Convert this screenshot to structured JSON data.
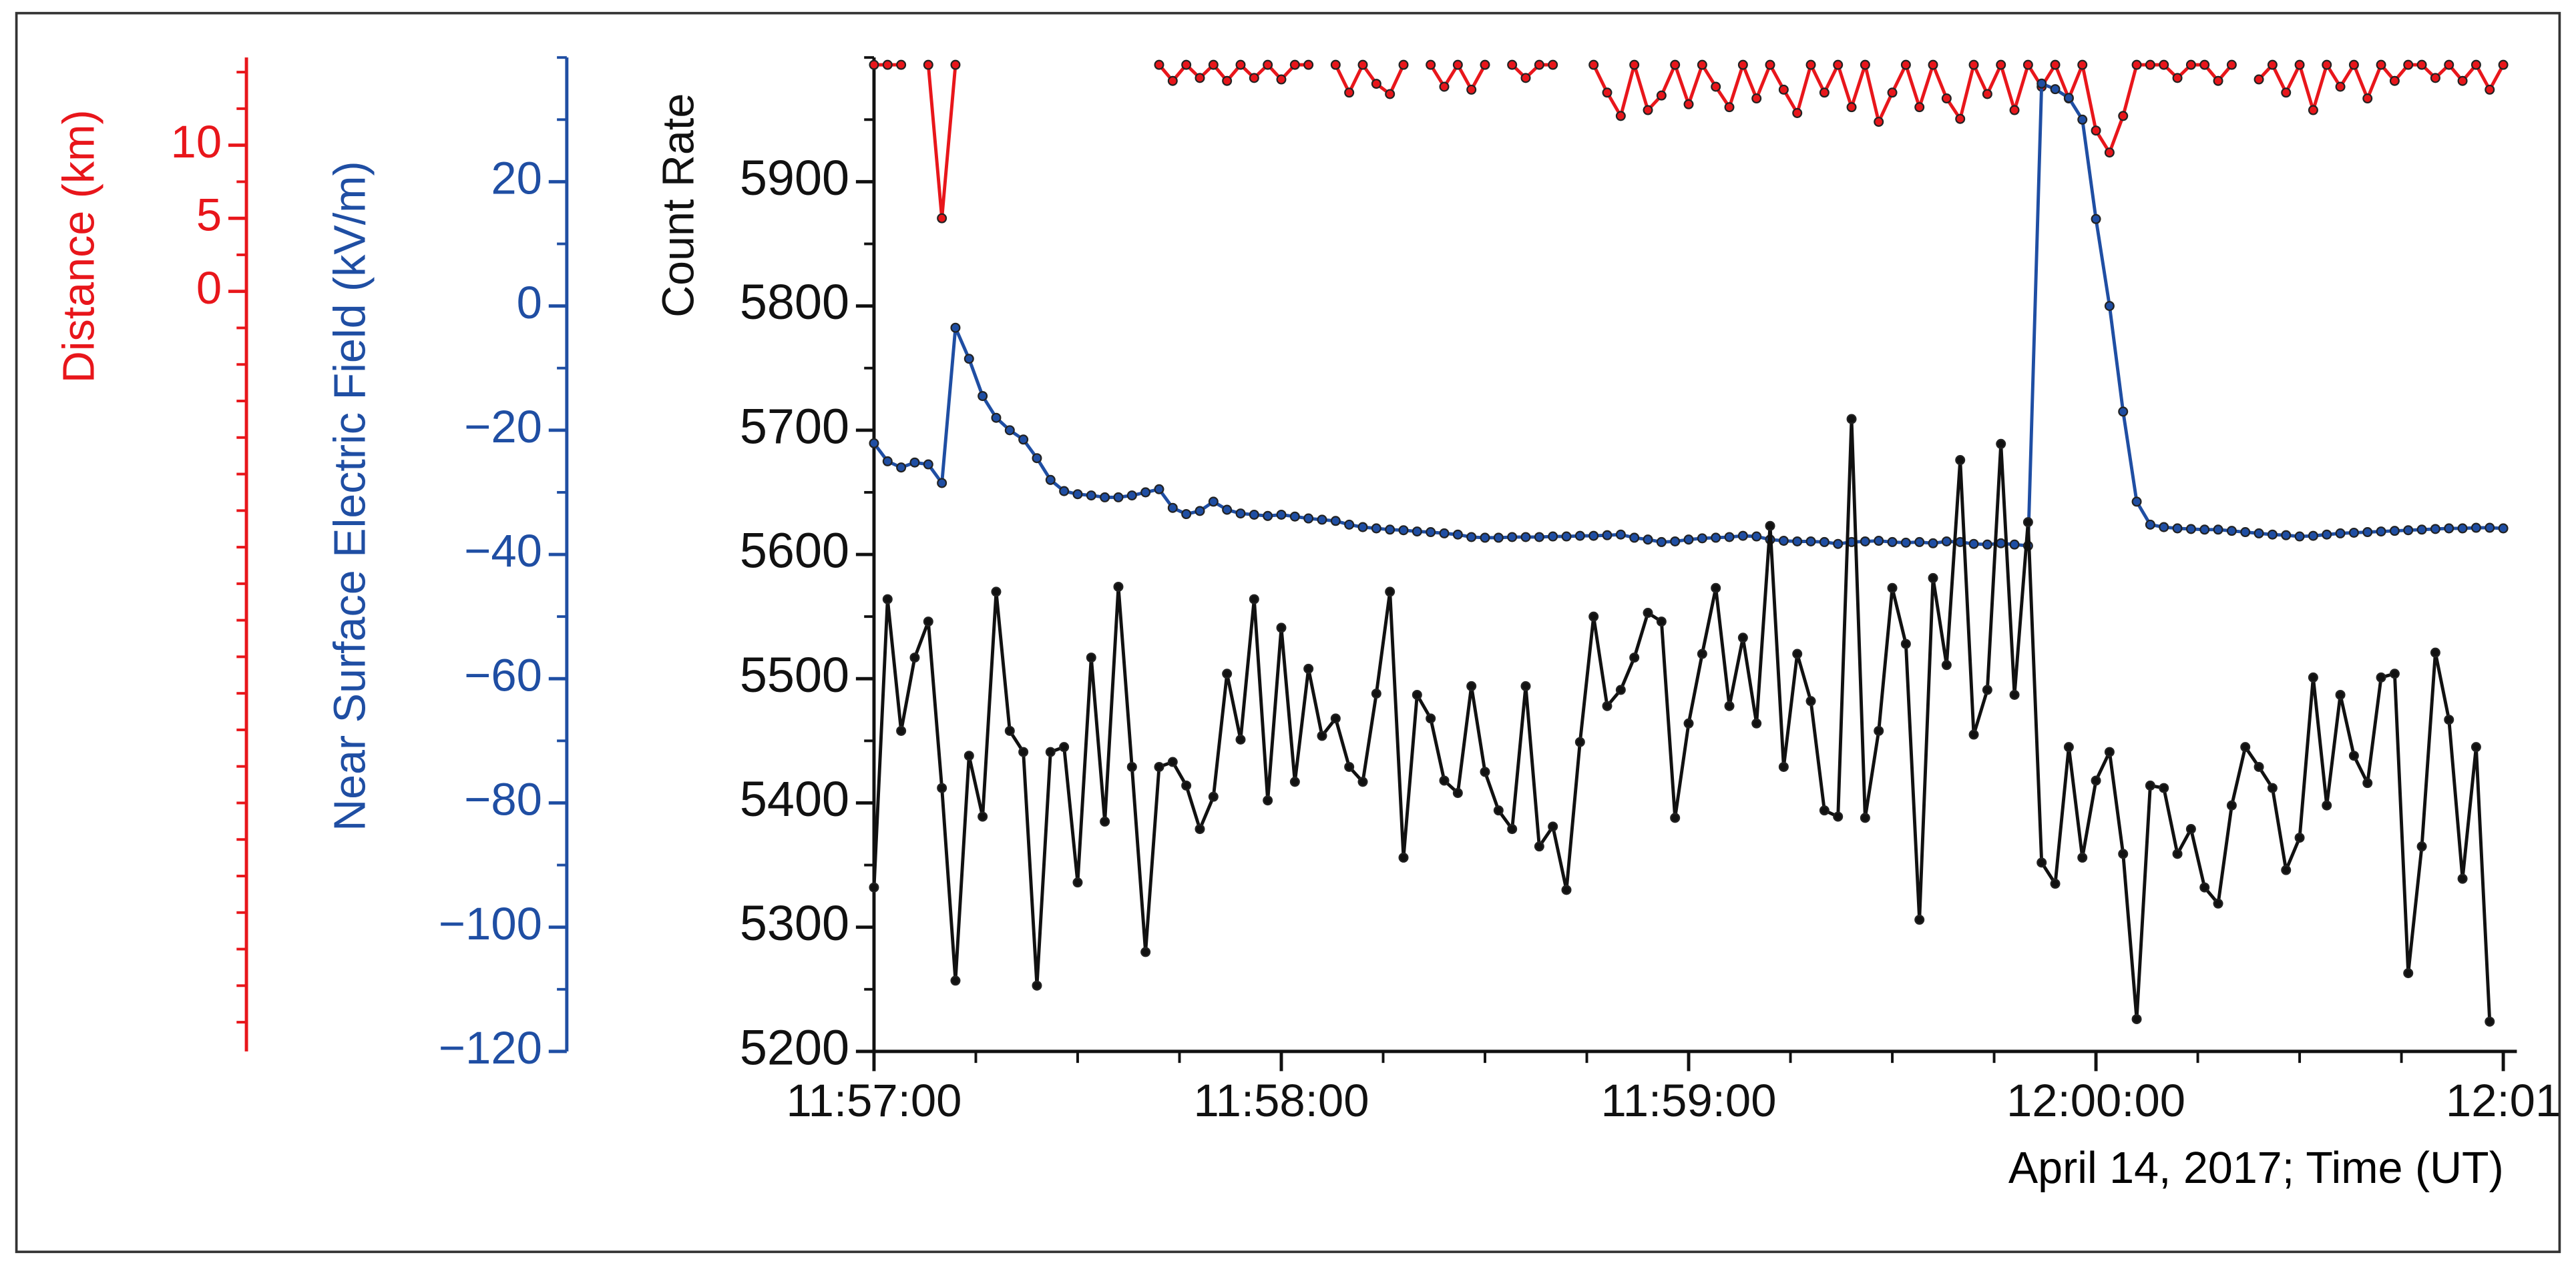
{
  "chart_data": {
    "type": "line",
    "xlabel": "April 14, 2017; Time (UT)",
    "ylabel": "Count Rate",
    "y2label": "Near Surface Electric Field (kV/m)",
    "y3label": "Distance (km)",
    "xlim": [
      0,
      242
    ],
    "xticks": [
      {
        "value": 0,
        "label": "11:57:00"
      },
      {
        "value": 60,
        "label": "11:58:00"
      },
      {
        "value": 120,
        "label": "11:59:00"
      },
      {
        "value": 180,
        "label": "12:00:00"
      },
      {
        "value": 240,
        "label": "12:01"
      }
    ],
    "xminor_divisions": 4,
    "ylim": [
      5200,
      6000
    ],
    "yticks": [
      5200,
      5300,
      5400,
      5500,
      5600,
      5700,
      5800,
      5900
    ],
    "yminor_divisions": 2,
    "y2lim": [
      -120,
      40
    ],
    "y2ticks": [
      {
        "value": -120,
        "label": "−120"
      },
      {
        "value": -100,
        "label": "−100"
      },
      {
        "value": -80,
        "label": "−80"
      },
      {
        "value": -60,
        "label": "−60"
      },
      {
        "value": -40,
        "label": "−40"
      },
      {
        "value": -20,
        "label": "−20"
      },
      0,
      20
    ],
    "y2minor_divisions": 2,
    "y3lim": [
      -52,
      16
    ],
    "y3ticks": [
      0,
      5,
      10
    ],
    "y3minor_divisions": 2,
    "series": [
      {
        "color": "#111111",
        "axis": "y",
        "x": [
          0,
          2,
          4,
          6,
          8,
          10,
          12,
          14,
          16,
          18,
          20,
          22,
          24,
          26,
          28,
          30,
          32,
          34,
          36,
          38,
          40,
          42,
          44,
          46,
          48,
          50,
          52,
          54,
          56,
          58,
          60,
          62,
          64,
          66,
          68,
          70,
          72,
          74,
          76,
          78,
          80,
          82,
          84,
          86,
          88,
          90,
          92,
          94,
          96,
          98,
          100,
          102,
          104,
          106,
          108,
          110,
          112,
          114,
          116,
          118,
          120,
          122,
          124,
          126,
          128,
          130,
          132,
          134,
          136,
          138,
          140,
          142,
          144,
          146,
          148,
          150,
          152,
          154,
          156,
          158,
          160,
          162,
          164,
          166,
          168,
          170,
          172,
          174,
          176,
          178,
          180,
          182,
          184,
          186,
          188,
          190,
          192,
          194,
          196,
          198,
          200,
          202,
          204,
          206,
          208,
          210,
          212,
          214,
          216,
          218,
          220,
          222,
          224,
          226,
          228,
          230,
          232,
          234,
          236,
          238
        ],
        "values": [
          5332,
          5564,
          5458,
          5517,
          5546,
          5412,
          5257,
          5438,
          5389,
          5570,
          5458,
          5441,
          5253,
          5441,
          5445,
          5336,
          5517,
          5385,
          5574,
          5429,
          5280,
          5429,
          5433,
          5414,
          5379,
          5405,
          5504,
          5451,
          5564,
          5402,
          5541,
          5417,
          5508,
          5454,
          5468,
          5429,
          5417,
          5488,
          5570,
          5356,
          5487,
          5468,
          5418,
          5408,
          5494,
          5425,
          5394,
          5379,
          5494,
          5365,
          5381,
          5330,
          5449,
          5550,
          5478,
          5491,
          5517,
          5553,
          5546,
          5388,
          5464,
          5520,
          5573,
          5478,
          5533,
          5464,
          5623,
          5429,
          5520,
          5482,
          5394,
          5389,
          5709,
          5388,
          5458,
          5573,
          5528,
          5306,
          5581,
          5511,
          5676,
          5455,
          5491,
          5689,
          5487,
          5626,
          5352,
          5335,
          5445,
          5356,
          5418,
          5441,
          5359,
          5226,
          5414,
          5412,
          5359,
          5379,
          5332,
          5319,
          5398,
          5445,
          5429,
          5412,
          5346,
          5372,
          5501,
          5398,
          5487,
          5438,
          5416,
          5501,
          5504,
          5263,
          5365,
          5521,
          5467,
          5339,
          5445,
          5224
        ]
      },
      {
        "color": "#1f4ea3",
        "axis": "y2",
        "x": [
          0,
          2,
          4,
          6,
          8,
          10,
          12,
          14,
          16,
          18,
          20,
          22,
          24,
          26,
          28,
          30,
          32,
          34,
          36,
          38,
          40,
          42,
          44,
          46,
          48,
          50,
          52,
          54,
          56,
          58,
          60,
          62,
          64,
          66,
          68,
          70,
          72,
          74,
          76,
          78,
          80,
          82,
          84,
          86,
          88,
          90,
          92,
          94,
          96,
          98,
          100,
          102,
          104,
          106,
          108,
          110,
          112,
          114,
          116,
          118,
          120,
          122,
          124,
          126,
          128,
          130,
          132,
          134,
          136,
          138,
          140,
          142,
          144,
          146,
          148,
          150,
          152,
          154,
          156,
          158,
          160,
          162,
          164,
          166,
          168,
          170,
          172,
          174,
          176,
          178,
          180,
          182,
          184,
          186,
          188,
          190,
          192,
          194,
          196,
          198,
          200,
          202,
          204,
          206,
          208,
          210,
          212,
          214,
          216,
          218,
          220,
          222,
          224,
          226,
          228,
          230,
          232,
          234,
          236,
          238,
          240
        ],
        "values": [
          -22.1,
          -25.0,
          -26.0,
          -25.2,
          -25.5,
          -28.5,
          -3.5,
          -8.5,
          -14.5,
          -18.0,
          -20.0,
          -21.5,
          -24.5,
          -28.0,
          -29.8,
          -30.3,
          -30.5,
          -30.8,
          -30.8,
          -30.5,
          -30.0,
          -29.5,
          -32.5,
          -33.5,
          -33.0,
          -31.5,
          -32.8,
          -33.4,
          -33.6,
          -33.8,
          -33.6,
          -33.9,
          -34.2,
          -34.4,
          -34.6,
          -35.2,
          -35.6,
          -35.8,
          -36.0,
          -36.1,
          -36.3,
          -36.4,
          -36.6,
          -36.8,
          -37.2,
          -37.3,
          -37.3,
          -37.2,
          -37.2,
          -37.2,
          -37.1,
          -37.1,
          -37.0,
          -37.0,
          -36.9,
          -36.8,
          -37.3,
          -37.6,
          -38.0,
          -37.9,
          -37.6,
          -37.4,
          -37.3,
          -37.2,
          -37.0,
          -37.1,
          -37.6,
          -37.8,
          -37.9,
          -37.9,
          -38.0,
          -38.3,
          -38.0,
          -37.9,
          -37.8,
          -38.0,
          -38.1,
          -38.0,
          -38.2,
          -37.9,
          -38.0,
          -38.3,
          -38.4,
          -38.2,
          -38.4,
          -38.6,
          35.8,
          34.9,
          33.5,
          30.0,
          14.0,
          0.0,
          -17.0,
          -31.5,
          -35.2,
          -35.6,
          -35.8,
          -35.9,
          -36.0,
          -36.0,
          -36.2,
          -36.4,
          -36.6,
          -36.8,
          -36.9,
          -37.1,
          -37.0,
          -36.8,
          -36.6,
          -36.5,
          -36.4,
          -36.3,
          -36.2,
          -36.1,
          -36.0,
          -35.9,
          -35.8,
          -35.8,
          -35.7,
          -35.7,
          -35.8
        ]
      },
      {
        "color": "#e8161b",
        "axis": "y3",
        "x": [
          0,
          2,
          4,
          6,
          8,
          10,
          12,
          14,
          16,
          18,
          20,
          22,
          24,
          26,
          28,
          30,
          32,
          34,
          36,
          38,
          40,
          42,
          44,
          46,
          48,
          50,
          52,
          54,
          56,
          58,
          60,
          62,
          64,
          66,
          68,
          70,
          72,
          74,
          76,
          78,
          80,
          82,
          84,
          86,
          88,
          90,
          92,
          94,
          96,
          98,
          100,
          102,
          104,
          106,
          108,
          110,
          112,
          114,
          116,
          118,
          120,
          122,
          124,
          126,
          128,
          130,
          132,
          134,
          136,
          138,
          140,
          142,
          144,
          146,
          148,
          150,
          152,
          154,
          156,
          158,
          160,
          162,
          164,
          166,
          168,
          170,
          172,
          174,
          176,
          178,
          180,
          182,
          184,
          186,
          188,
          190,
          192,
          194,
          196,
          198,
          200,
          202,
          204,
          206,
          208,
          210,
          212,
          214,
          216,
          218,
          220,
          222,
          224,
          226,
          228,
          230,
          232,
          234,
          236,
          238,
          240
        ],
        "values": [
          15.5,
          15.5,
          15.5,
          null,
          15.5,
          5.0,
          15.5,
          null,
          null,
          null,
          null,
          null,
          null,
          null,
          null,
          null,
          null,
          null,
          null,
          null,
          null,
          15.5,
          14.4,
          15.5,
          14.6,
          15.5,
          14.4,
          15.5,
          14.6,
          15.5,
          14.5,
          15.5,
          15.5,
          null,
          15.5,
          13.6,
          15.5,
          14.2,
          13.5,
          15.5,
          null,
          15.5,
          14.0,
          15.5,
          13.8,
          15.5,
          null,
          15.5,
          14.6,
          15.5,
          15.5,
          null,
          null,
          15.5,
          13.6,
          12.0,
          15.5,
          12.4,
          13.4,
          15.5,
          12.8,
          15.5,
          14.0,
          12.6,
          15.5,
          13.2,
          15.5,
          13.8,
          12.2,
          15.5,
          13.6,
          15.5,
          12.6,
          15.5,
          11.6,
          13.6,
          15.5,
          12.6,
          15.5,
          13.2,
          11.8,
          15.5,
          13.5,
          15.5,
          12.4,
          15.5,
          14.0,
          15.5,
          13.2,
          15.5,
          11.0,
          9.5,
          12.0,
          15.5,
          15.5,
          15.5,
          14.6,
          15.5,
          15.5,
          14.4,
          15.5,
          null,
          14.5,
          15.5,
          13.6,
          15.5,
          12.4,
          15.5,
          14.0,
          15.5,
          13.2,
          15.5,
          14.4,
          15.5,
          15.5,
          14.6,
          15.5,
          14.4,
          15.5,
          13.8,
          15.5
        ]
      }
    ]
  }
}
